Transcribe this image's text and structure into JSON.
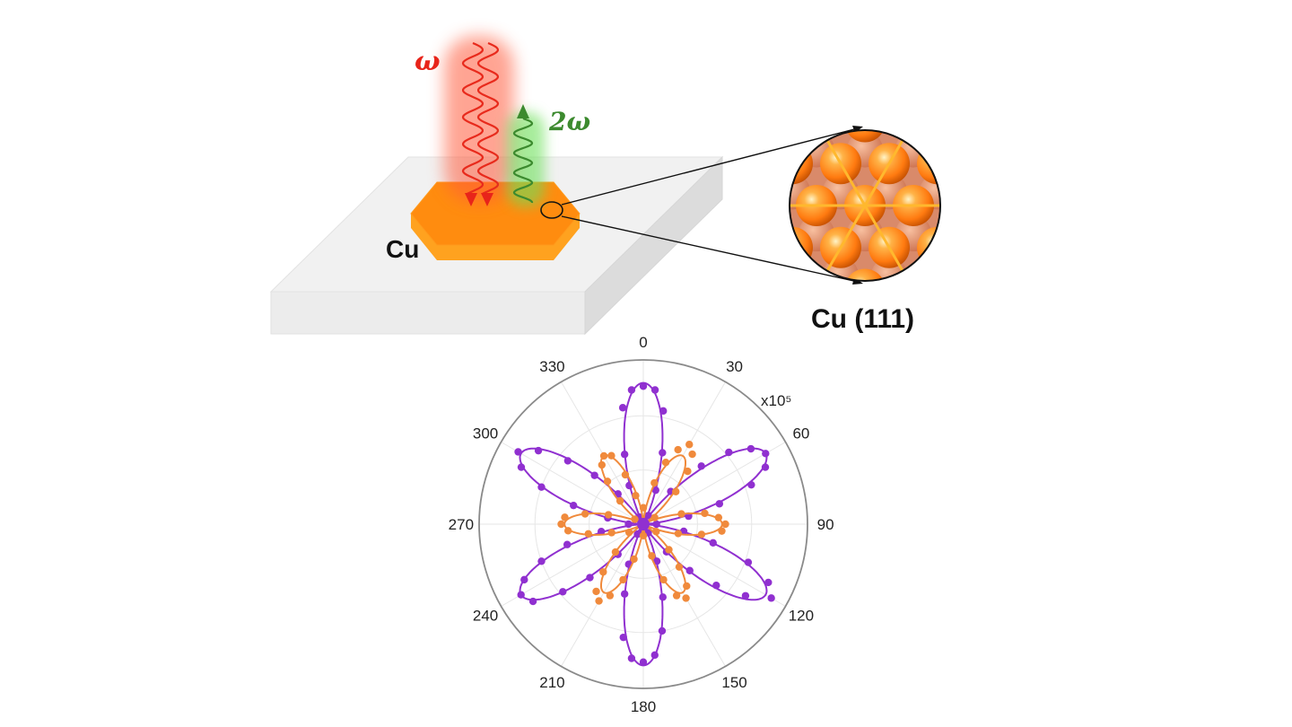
{
  "labels": {
    "omega": "ω",
    "two_omega": "2ω",
    "cu": "Cu",
    "cu111": "Cu (111)",
    "scale": "x10⁵"
  },
  "colors": {
    "fundamental": "#e8241a",
    "harmonic": "#3c8a2e",
    "copper": "#ff8c1a",
    "purple_series": "#9030d0",
    "orange_series": "#f08a3c"
  },
  "chart_data": {
    "type": "polar",
    "angle_ticks": [
      0,
      30,
      60,
      90,
      120,
      150,
      180,
      210,
      240,
      270,
      300,
      330
    ],
    "angle_tick_labels": [
      "0",
      "30",
      "60",
      "90",
      "120",
      "150",
      "180",
      "210",
      "240",
      "270",
      "300",
      "330"
    ],
    "radial_scale_label": "x10⁵",
    "rmax": 1.0,
    "series": [
      {
        "color": "#9030d0",
        "fit": {
          "lobes": 6,
          "peak": 0.86,
          "phase_deg": 0,
          "exponent": 2
        },
        "points": [
          [
            0,
            0.84
          ],
          [
            5,
            0.82
          ],
          [
            -5,
            0.82
          ],
          [
            10,
            0.7
          ],
          [
            -10,
            0.72
          ],
          [
            15,
            0.45
          ],
          [
            -15,
            0.44
          ],
          [
            20,
            0.22
          ],
          [
            -20,
            0.25
          ],
          [
            60,
            0.86
          ],
          [
            55,
            0.8
          ],
          [
            65,
            0.82
          ],
          [
            50,
            0.68
          ],
          [
            70,
            0.7
          ],
          [
            45,
            0.5
          ],
          [
            75,
            0.48
          ],
          [
            40,
            0.26
          ],
          [
            80,
            0.28
          ],
          [
            120,
            0.9
          ],
          [
            115,
            0.84
          ],
          [
            125,
            0.76
          ],
          [
            110,
            0.68
          ],
          [
            130,
            0.58
          ],
          [
            105,
            0.44
          ],
          [
            135,
            0.4
          ],
          [
            100,
            0.25
          ],
          [
            140,
            0.22
          ],
          [
            180,
            0.84
          ],
          [
            175,
            0.8
          ],
          [
            185,
            0.82
          ],
          [
            170,
            0.66
          ],
          [
            190,
            0.7
          ],
          [
            165,
            0.46
          ],
          [
            195,
            0.44
          ],
          [
            160,
            0.24
          ],
          [
            200,
            0.26
          ],
          [
            240,
            0.86
          ],
          [
            235,
            0.82
          ],
          [
            245,
            0.8
          ],
          [
            230,
            0.64
          ],
          [
            250,
            0.66
          ],
          [
            225,
            0.46
          ],
          [
            255,
            0.48
          ],
          [
            220,
            0.24
          ],
          [
            260,
            0.26
          ],
          [
            300,
            0.88
          ],
          [
            295,
            0.82
          ],
          [
            305,
            0.78
          ],
          [
            290,
            0.66
          ],
          [
            310,
            0.6
          ],
          [
            285,
            0.44
          ],
          [
            315,
            0.42
          ],
          [
            280,
            0.22
          ],
          [
            320,
            0.24
          ],
          [
            90,
            0.08
          ],
          [
            150,
            0.06
          ],
          [
            210,
            0.07
          ],
          [
            270,
            0.09
          ],
          [
            330,
            0.05
          ],
          [
            30,
            0.06
          ],
          [
            0,
            0.03
          ],
          [
            180,
            0.04
          ]
        ]
      },
      {
        "color": "#f08a3c",
        "fit": {
          "lobes": 6,
          "peak": 0.48,
          "phase_deg": 30,
          "exponent": 2
        },
        "points": [
          [
            30,
            0.56
          ],
          [
            25,
            0.5
          ],
          [
            35,
            0.52
          ],
          [
            20,
            0.4
          ],
          [
            40,
            0.42
          ],
          [
            15,
            0.26
          ],
          [
            45,
            0.28
          ],
          [
            90,
            0.5
          ],
          [
            85,
            0.46
          ],
          [
            95,
            0.48
          ],
          [
            80,
            0.38
          ],
          [
            100,
            0.36
          ],
          [
            75,
            0.24
          ],
          [
            105,
            0.22
          ],
          [
            150,
            0.52
          ],
          [
            145,
            0.46
          ],
          [
            155,
            0.48
          ],
          [
            140,
            0.34
          ],
          [
            160,
            0.36
          ],
          [
            135,
            0.22
          ],
          [
            165,
            0.2
          ],
          [
            210,
            0.54
          ],
          [
            205,
            0.48
          ],
          [
            215,
            0.5
          ],
          [
            200,
            0.36
          ],
          [
            220,
            0.38
          ],
          [
            195,
            0.22
          ],
          [
            225,
            0.24
          ],
          [
            270,
            0.5
          ],
          [
            265,
            0.46
          ],
          [
            275,
            0.48
          ],
          [
            260,
            0.34
          ],
          [
            280,
            0.36
          ],
          [
            255,
            0.2
          ],
          [
            285,
            0.22
          ],
          [
            330,
            0.48
          ],
          [
            325,
            0.44
          ],
          [
            335,
            0.46
          ],
          [
            320,
            0.34
          ],
          [
            340,
            0.32
          ],
          [
            315,
            0.2
          ],
          [
            345,
            0.18
          ],
          [
            0,
            0.1
          ],
          [
            60,
            0.08
          ],
          [
            120,
            0.09
          ],
          [
            180,
            0.07
          ],
          [
            240,
            0.1
          ],
          [
            300,
            0.06
          ]
        ]
      }
    ]
  }
}
